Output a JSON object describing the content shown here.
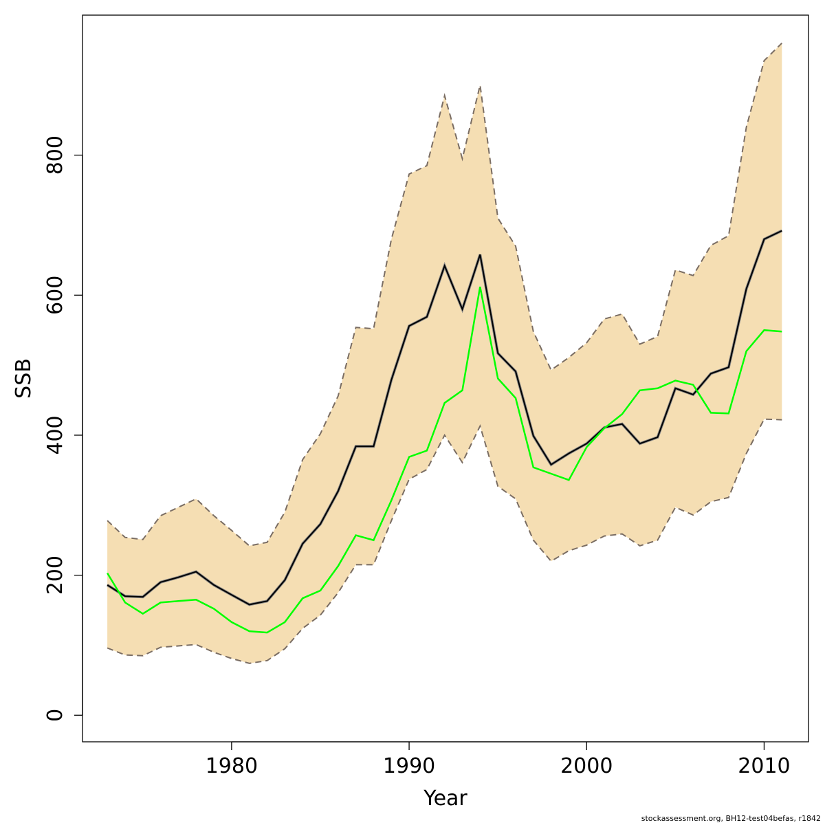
{
  "footer": "stockassessment.org, BH12-test04befas, r1842",
  "chart_data": {
    "type": "line",
    "xlabel": "Year",
    "ylabel": "SSB",
    "xlim": [
      1971.6,
      2012.5
    ],
    "ylim": [
      -38,
      1000
    ],
    "x_ticks": [
      1980,
      1990,
      2000,
      2010
    ],
    "y_ticks": [
      0,
      200,
      400,
      600,
      800
    ],
    "grid": false,
    "colors": {
      "band": "#F5DEB3",
      "band_edge": "#7a6d63",
      "estimate": "#000000",
      "estimate_shadow": "#888888",
      "comparison": "#00FF00"
    },
    "x": [
      1973,
      1974,
      1975,
      1976,
      1977,
      1978,
      1979,
      1980,
      1981,
      1982,
      1983,
      1984,
      1985,
      1986,
      1987,
      1988,
      1989,
      1990,
      1991,
      1992,
      1993,
      1994,
      1995,
      1996,
      1997,
      1998,
      1999,
      2000,
      2001,
      2002,
      2003,
      2004,
      2005,
      2006,
      2007,
      2008,
      2009,
      2010,
      2011
    ],
    "series": [
      {
        "role": "upper",
        "values": [
          278,
          254,
          251,
          285,
          297,
          309,
          285,
          264,
          242,
          247,
          290,
          365,
          402,
          456,
          554,
          552,
          680,
          773,
          785,
          885,
          795,
          900,
          710,
          670,
          548,
          493,
          511,
          532,
          566,
          573,
          530,
          541,
          636,
          628,
          671,
          685,
          840,
          935,
          960
        ]
      },
      {
        "role": "lower",
        "values": [
          96,
          86,
          85,
          97,
          99,
          101,
          90,
          81,
          74,
          78,
          95,
          124,
          143,
          175,
          215,
          215,
          278,
          337,
          351,
          400,
          361,
          413,
          327,
          309,
          250,
          220,
          235,
          243,
          256,
          259,
          242,
          250,
          297,
          286,
          305,
          311,
          374,
          423,
          422
        ]
      },
      {
        "role": "estimate",
        "values": [
          186,
          170,
          169,
          190,
          197,
          205,
          186,
          172,
          158,
          163,
          193,
          245,
          273,
          320,
          384,
          384,
          479,
          556,
          569,
          642,
          580,
          658,
          517,
          491,
          399,
          358,
          374,
          388,
          411,
          416,
          388,
          397,
          467,
          458,
          488,
          497,
          609,
          680,
          692
        ]
      },
      {
        "role": "comparison",
        "values": [
          203,
          161,
          145,
          161,
          163,
          165,
          152,
          133,
          120,
          118,
          133,
          167,
          178,
          213,
          257,
          250,
          307,
          369,
          378,
          446,
          464,
          612,
          481,
          453,
          354,
          345,
          336,
          383,
          410,
          430,
          464,
          467,
          478,
          472,
          432,
          431,
          520,
          550,
          548
        ]
      }
    ]
  }
}
